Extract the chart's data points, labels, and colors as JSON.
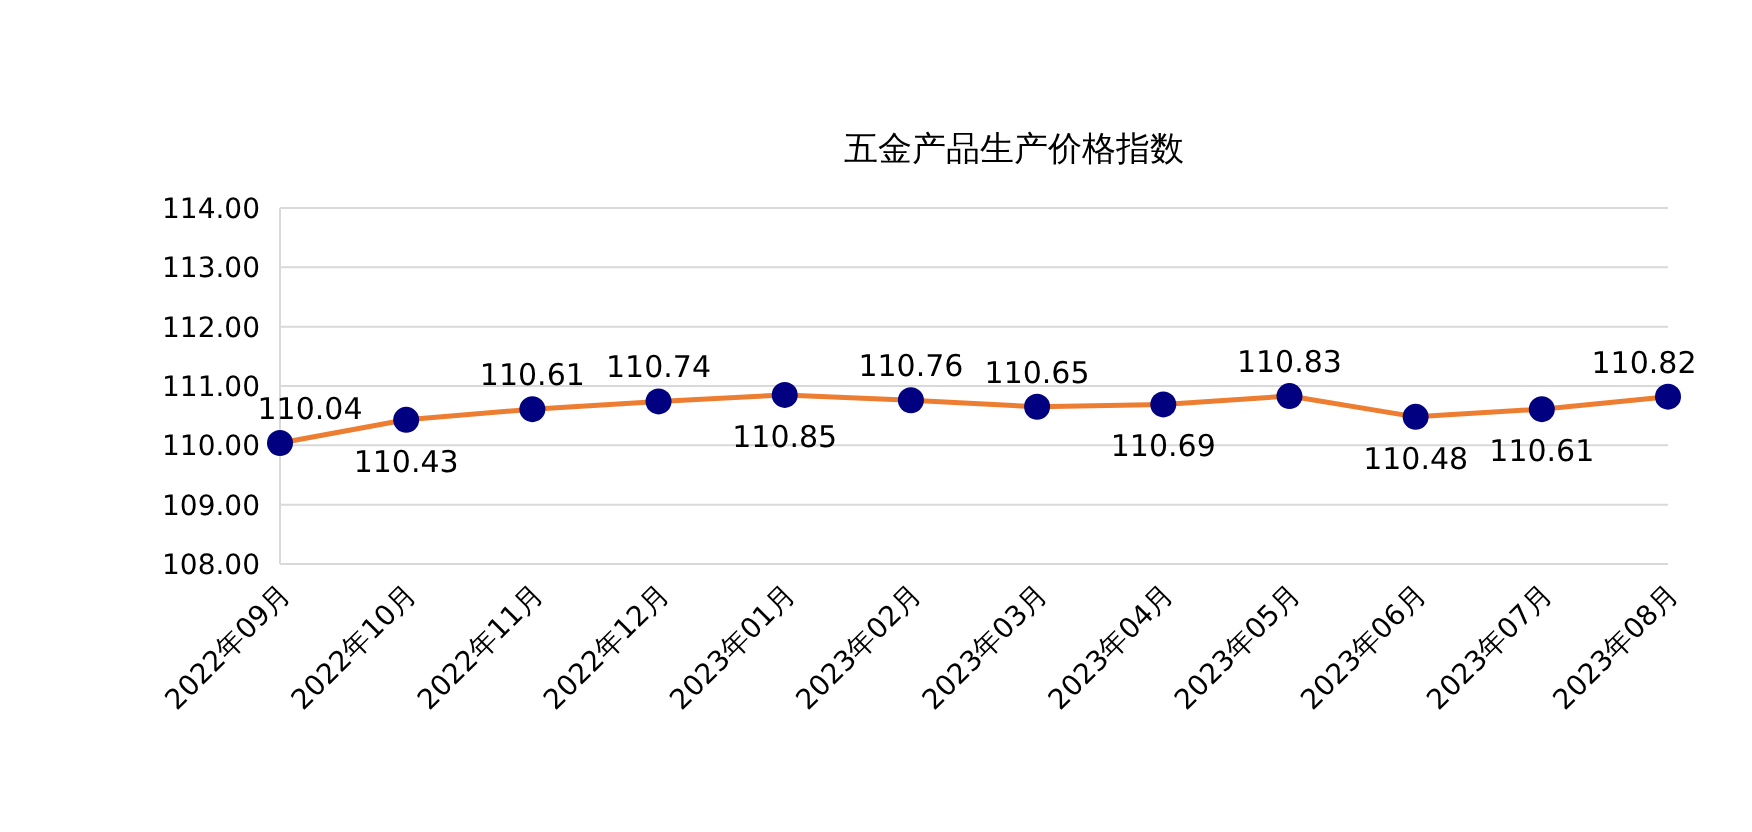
{
  "chart_data": {
    "type": "line",
    "title": "五金产品生产价格指数",
    "categories": [
      "2022年09月",
      "2022年10月",
      "2022年11月",
      "2022年12月",
      "2023年01月",
      "2023年02月",
      "2023年03月",
      "2023年04月",
      "2023年05月",
      "2023年06月",
      "2023年07月",
      "2023年08月"
    ],
    "values": [
      110.04,
      110.43,
      110.61,
      110.74,
      110.85,
      110.76,
      110.65,
      110.69,
      110.83,
      110.48,
      110.61,
      110.82
    ],
    "color": "#ed7d31",
    "marker": "circle",
    "data_labels": true,
    "grid": "y",
    "ylim": [
      108,
      114
    ],
    "yticks": [
      {
        "value": 108,
        "label": "108.00"
      },
      {
        "value": 109,
        "label": "109.00"
      },
      {
        "value": 110,
        "label": "110.00"
      },
      {
        "value": 111,
        "label": "111.00"
      },
      {
        "value": 112,
        "label": "112.00"
      },
      {
        "value": 113,
        "label": "113.00"
      },
      {
        "value": 114,
        "label": "114.00"
      }
    ]
  }
}
